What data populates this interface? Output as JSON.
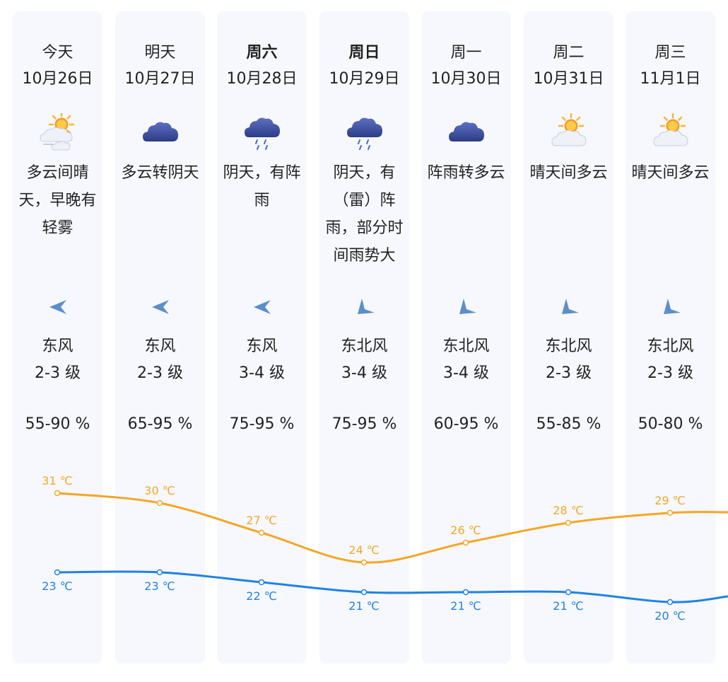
{
  "days": [
    {
      "day": "今天",
      "date": "10月26日",
      "bold": false,
      "icon": "cloudy-sunny-fog-icon",
      "desc": [
        "多云间晴",
        "天，早晚有",
        "轻雾"
      ],
      "wind_icon": "wind-east-arrow-icon",
      "wind_dir": "东风",
      "wind_level": "2-3 级",
      "humidity": "55-90 %",
      "high": "31 ℃",
      "low": "23 ℃"
    },
    {
      "day": "明天",
      "date": "10月27日",
      "bold": false,
      "icon": "overcast-cloud-icon",
      "desc": [
        "多云转阴天"
      ],
      "wind_icon": "wind-east-arrow-icon",
      "wind_dir": "东风",
      "wind_level": "2-3 级",
      "humidity": "65-95 %",
      "high": "30 ℃",
      "low": "23 ℃"
    },
    {
      "day": "周六",
      "date": "10月28日",
      "bold": true,
      "icon": "rain-cloud-icon",
      "desc": [
        "阴天，有阵",
        "雨"
      ],
      "wind_icon": "wind-east-arrow-icon",
      "wind_dir": "东风",
      "wind_level": "3-4 级",
      "humidity": "75-95 %",
      "high": "27 ℃",
      "low": "22 ℃"
    },
    {
      "day": "周日",
      "date": "10月29日",
      "bold": true,
      "icon": "rain-cloud-icon",
      "desc": [
        "阴天，有",
        "（雷）阵",
        "雨，部分时",
        "间雨势大"
      ],
      "wind_icon": "wind-northeast-arrow-icon",
      "wind_dir": "东北风",
      "wind_level": "3-4 级",
      "humidity": "75-95 %",
      "high": "24 ℃",
      "low": "21 ℃"
    },
    {
      "day": "周一",
      "date": "10月30日",
      "bold": false,
      "icon": "overcast-cloud-icon",
      "desc": [
        "阵雨转多云"
      ],
      "wind_icon": "wind-northeast-arrow-icon",
      "wind_dir": "东北风",
      "wind_level": "3-4 级",
      "humidity": "60-95 %",
      "high": "26 ℃",
      "low": "21 ℃"
    },
    {
      "day": "周二",
      "date": "10月31日",
      "bold": false,
      "icon": "sunny-cloudy-icon",
      "desc": [
        "晴天间多云"
      ],
      "wind_icon": "wind-northeast-arrow-icon",
      "wind_dir": "东北风",
      "wind_level": "2-3 级",
      "humidity": "55-85 %",
      "high": "28 ℃",
      "low": "21 ℃"
    },
    {
      "day": "周三",
      "date": "11月1日",
      "bold": false,
      "icon": "sunny-cloudy-icon",
      "desc": [
        "晴天间多云"
      ],
      "wind_icon": "wind-northeast-arrow-icon",
      "wind_dir": "东北风",
      "wind_level": "2-3 级",
      "humidity": "50-80 %",
      "high": "29 ℃",
      "low": "20 ℃"
    }
  ],
  "colors": {
    "high_line": "#f5a623",
    "low_line": "#1f82e6",
    "column_bg": "#f6f8fd",
    "cloud_dark": "#3a4f9e",
    "wind_arrow": "#5b8fc9",
    "sun": "#f7b538"
  },
  "temps": {
    "high": [
      31,
      30,
      27,
      24,
      26,
      28,
      29
    ],
    "low": [
      23,
      23,
      22,
      21,
      21,
      21,
      20
    ]
  }
}
